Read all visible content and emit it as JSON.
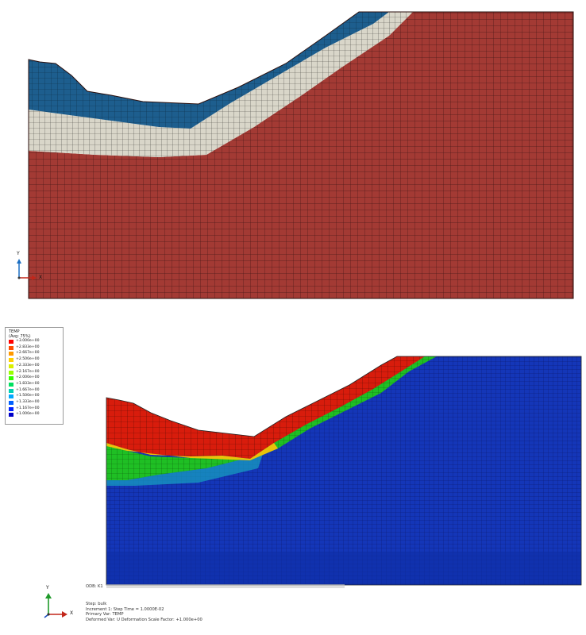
{
  "top_viewport": {
    "colors": {
      "clay": "#a33a34",
      "sand": "#d9d6c9",
      "topsoil": "#1d5e8e",
      "mesh": "#3a1412"
    }
  },
  "bottom_viewport": {
    "colors": {
      "hot": "#d81c0c",
      "green": "#1fbf24",
      "cold": "#1436b8",
      "deep": "#0e2ea6"
    }
  },
  "legend": {
    "title": "TEMP",
    "subtitle": "(Avg: 75%)",
    "entries": [
      {
        "value": "+3.000e+00",
        "color": "#ff0000"
      },
      {
        "value": "+2.833e+00",
        "color": "#ff4c00"
      },
      {
        "value": "+2.667e+00",
        "color": "#ff9900"
      },
      {
        "value": "+2.500e+00",
        "color": "#ffd000"
      },
      {
        "value": "+2.333e+00",
        "color": "#d9f000"
      },
      {
        "value": "+2.167e+00",
        "color": "#99ff00"
      },
      {
        "value": "+2.000e+00",
        "color": "#33ff00"
      },
      {
        "value": "+1.833e+00",
        "color": "#00e060"
      },
      {
        "value": "+1.667e+00",
        "color": "#00d2b4"
      },
      {
        "value": "+1.500e+00",
        "color": "#00a8ff"
      },
      {
        "value": "+1.333e+00",
        "color": "#0060ff"
      },
      {
        "value": "+1.167e+00",
        "color": "#0020ff"
      },
      {
        "value": "+1.000e+00",
        "color": "#0000c8"
      }
    ]
  },
  "triad_top": {
    "y": "Y",
    "x": "X"
  },
  "triad_bottom": {
    "y": "Y",
    "x": "X"
  },
  "odb_line": "ODB: K1",
  "status": {
    "step": "Step: bulk",
    "increment": "Increment     1: Step Time =    1.0000E-02",
    "primary": "Primary Var: TEMP",
    "deformed": "Deformed Var: U   Deformation Scale Factor: +1.000e+00"
  }
}
